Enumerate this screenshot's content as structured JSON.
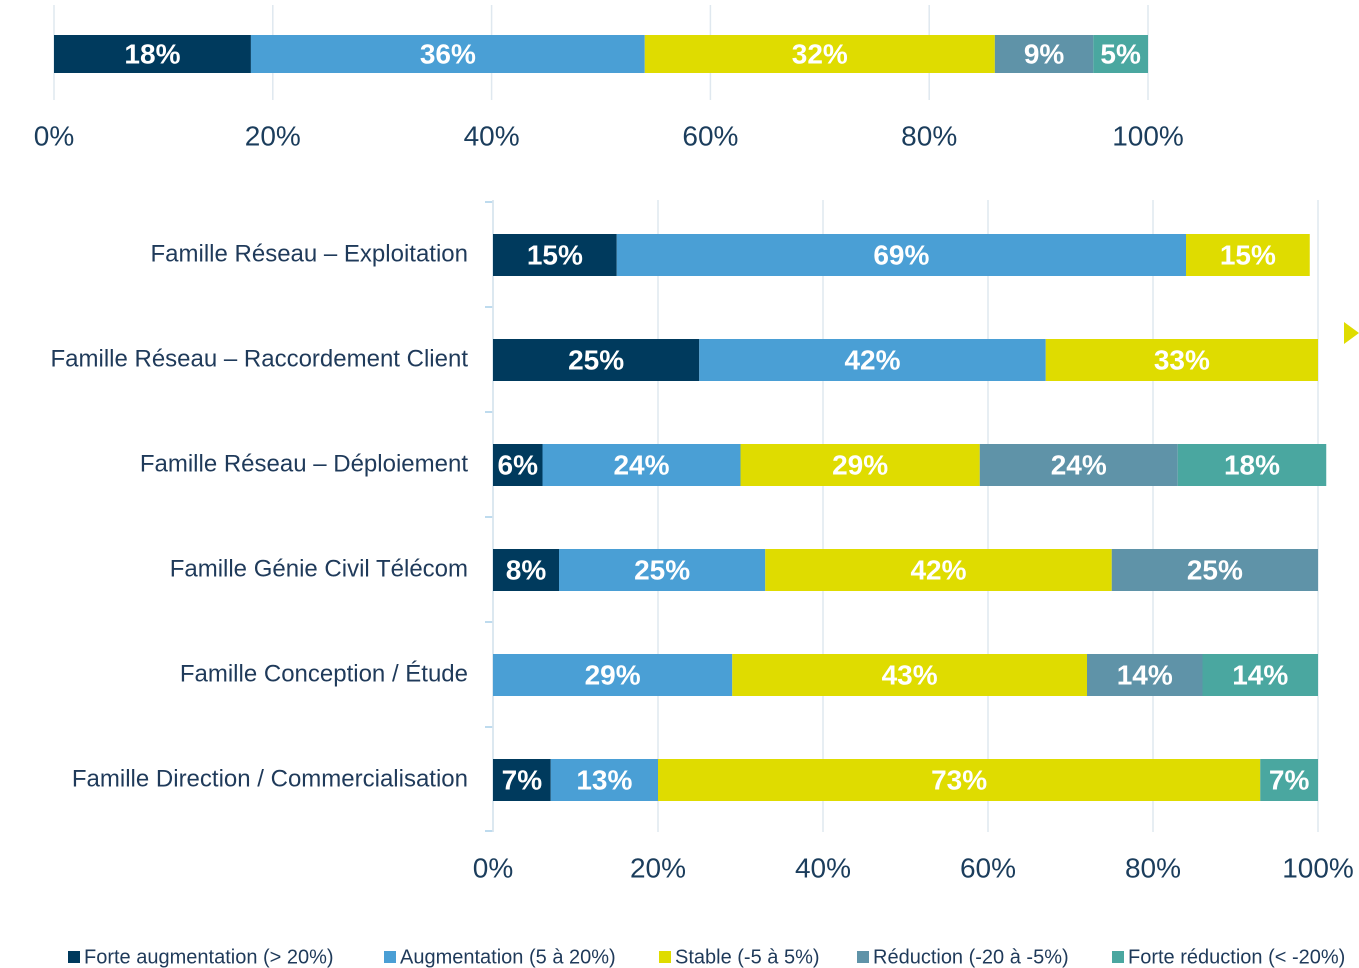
{
  "chart_data": [
    {
      "type": "stacked_bar_horizontal",
      "series": [
        {
          "color": "#003a5d",
          "values": [
            18
          ],
          "value_labels": [
            "18%"
          ]
        },
        {
          "color": "#4a9fd5",
          "values": [
            36
          ],
          "value_labels": [
            "36%"
          ]
        },
        {
          "color": "#dfdc00",
          "values": [
            32
          ],
          "value_labels": [
            "32%"
          ]
        },
        {
          "color": "#5f93a8",
          "values": [
            9
          ],
          "value_labels": [
            "9%"
          ]
        },
        {
          "color": "#4aa7a0",
          "values": [
            5
          ],
          "value_labels": [
            "5%"
          ]
        }
      ],
      "xlim": [
        0,
        100
      ],
      "xticks": [
        {
          "value": 0,
          "label": "0%"
        },
        {
          "value": 20,
          "label": "20%"
        },
        {
          "value": 40,
          "label": "40%"
        },
        {
          "value": 60,
          "label": "60%"
        },
        {
          "value": 80,
          "label": "80%"
        },
        {
          "value": 100,
          "label": "100%"
        }
      ],
      "grid": true
    },
    {
      "type": "stacked_bar_horizontal",
      "categories": [
        "Famille Réseau – Exploitation",
        "Famille Réseau – Raccordement Client",
        "Famille Réseau – Déploiement",
        "Famille Génie Civil Télécom",
        "Famille Conception / Étude",
        "Famille Direction / Commercialisation"
      ],
      "series": [
        {
          "name": "Forte augmentation (> 20%)",
          "color": "#003a5d",
          "values": [
            15,
            25,
            6,
            8,
            null,
            7
          ],
          "value_labels": [
            "15%",
            "25%",
            "6%",
            "8%",
            null,
            "7%"
          ]
        },
        {
          "name": "Augmentation (5 à 20%)",
          "color": "#4a9fd5",
          "values": [
            69,
            42,
            24,
            25,
            29,
            13
          ],
          "value_labels": [
            "69%",
            "42%",
            "24%",
            "25%",
            "29%",
            "13%"
          ]
        },
        {
          "name": "Stable (-5 à 5%)",
          "color": "#dfdc00",
          "values": [
            15,
            33,
            29,
            42,
            43,
            73
          ],
          "value_labels": [
            "15%",
            "33%",
            "29%",
            "42%",
            "43%",
            "73%"
          ]
        },
        {
          "name": "Réduction (-20 à -5%)",
          "color": "#5f93a8",
          "values": [
            null,
            null,
            24,
            25,
            14,
            null
          ],
          "value_labels": [
            null,
            null,
            "24%",
            "25%",
            "14%",
            null
          ]
        },
        {
          "name": "Forte réduction (< -20%)",
          "color": "#4aa7a0",
          "values": [
            null,
            null,
            18,
            null,
            14,
            7
          ],
          "value_labels": [
            null,
            null,
            "18%",
            null,
            "14%",
            "7%"
          ]
        }
      ],
      "xlim": [
        0,
        100
      ],
      "xticks": [
        {
          "value": 0,
          "label": "0%"
        },
        {
          "value": 20,
          "label": "20%"
        },
        {
          "value": 40,
          "label": "40%"
        },
        {
          "value": 60,
          "label": "60%"
        },
        {
          "value": 80,
          "label": "80%"
        },
        {
          "value": 100,
          "label": "100%"
        }
      ],
      "grid": true,
      "legend": "bottom"
    }
  ]
}
